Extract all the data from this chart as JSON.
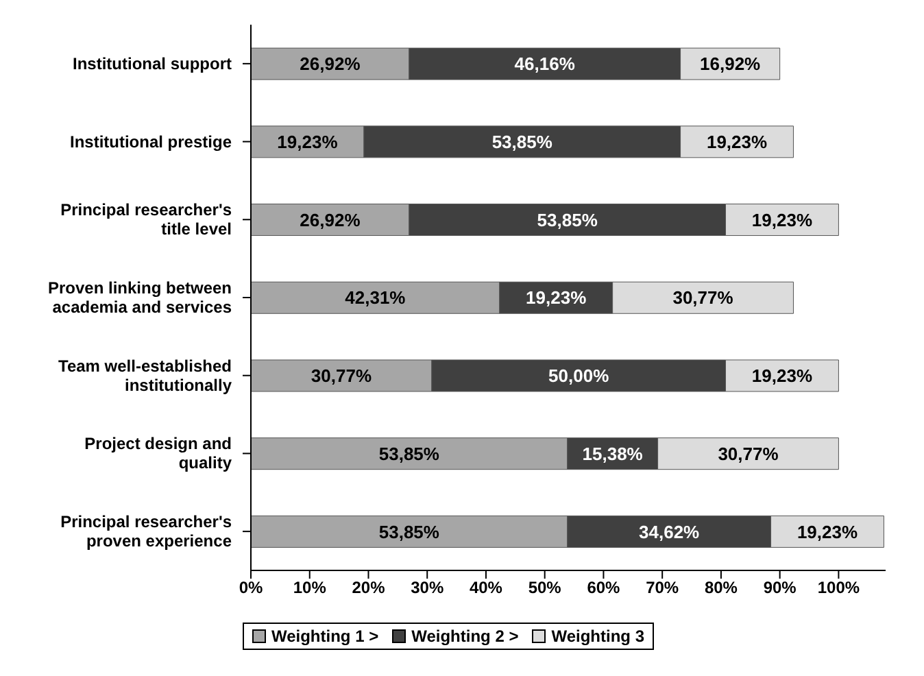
{
  "chart_data": {
    "type": "bar",
    "orientation": "horizontal",
    "stacked": true,
    "categories": [
      "Institutional support",
      "Institutional prestige",
      "Principal researcher's title level",
      "Proven linking between academia and services",
      "Team well-established institutionally",
      "Project design and quality",
      "Principal researcher's proven experience"
    ],
    "series": [
      {
        "name": "Weighting 1 >",
        "color": "#a6a6a6",
        "values": [
          26.92,
          19.23,
          26.92,
          42.31,
          30.77,
          53.85,
          53.85
        ],
        "value_labels": [
          "26,92%",
          "19,23%",
          "26,92%",
          "42,31%",
          "30,77%",
          "53,85%",
          "53,85%"
        ]
      },
      {
        "name": "Weighting 2 >",
        "color": "#404040",
        "values": [
          46.16,
          53.85,
          53.85,
          19.23,
          50.0,
          15.38,
          34.62
        ],
        "value_labels": [
          "46,16%",
          "53,85%",
          "53,85%",
          "19,23%",
          "50,00%",
          "15,38%",
          "34,62%"
        ]
      },
      {
        "name": "Weighting 3",
        "color": "#dcdcdc",
        "values": [
          16.92,
          19.23,
          19.23,
          30.77,
          19.23,
          30.77,
          19.23
        ],
        "value_labels": [
          "16,92%",
          "19,23%",
          "19,23%",
          "30,77%",
          "19,23%",
          "30,77%",
          "19,23%"
        ]
      }
    ],
    "xlim": [
      0,
      108
    ],
    "xticks": [
      {
        "value": 0,
        "label": "0%"
      },
      {
        "value": 10,
        "label": "10%"
      },
      {
        "value": 20,
        "label": "20%"
      },
      {
        "value": 30,
        "label": "30%"
      },
      {
        "value": 40,
        "label": "40%"
      },
      {
        "value": 50,
        "label": "50%"
      },
      {
        "value": 60,
        "label": "60%"
      },
      {
        "value": 70,
        "label": "70%"
      },
      {
        "value": 80,
        "label": "80%"
      },
      {
        "value": 90,
        "label": "90%"
      },
      {
        "value": 100,
        "label": "100%"
      }
    ],
    "legend": "bottom"
  }
}
